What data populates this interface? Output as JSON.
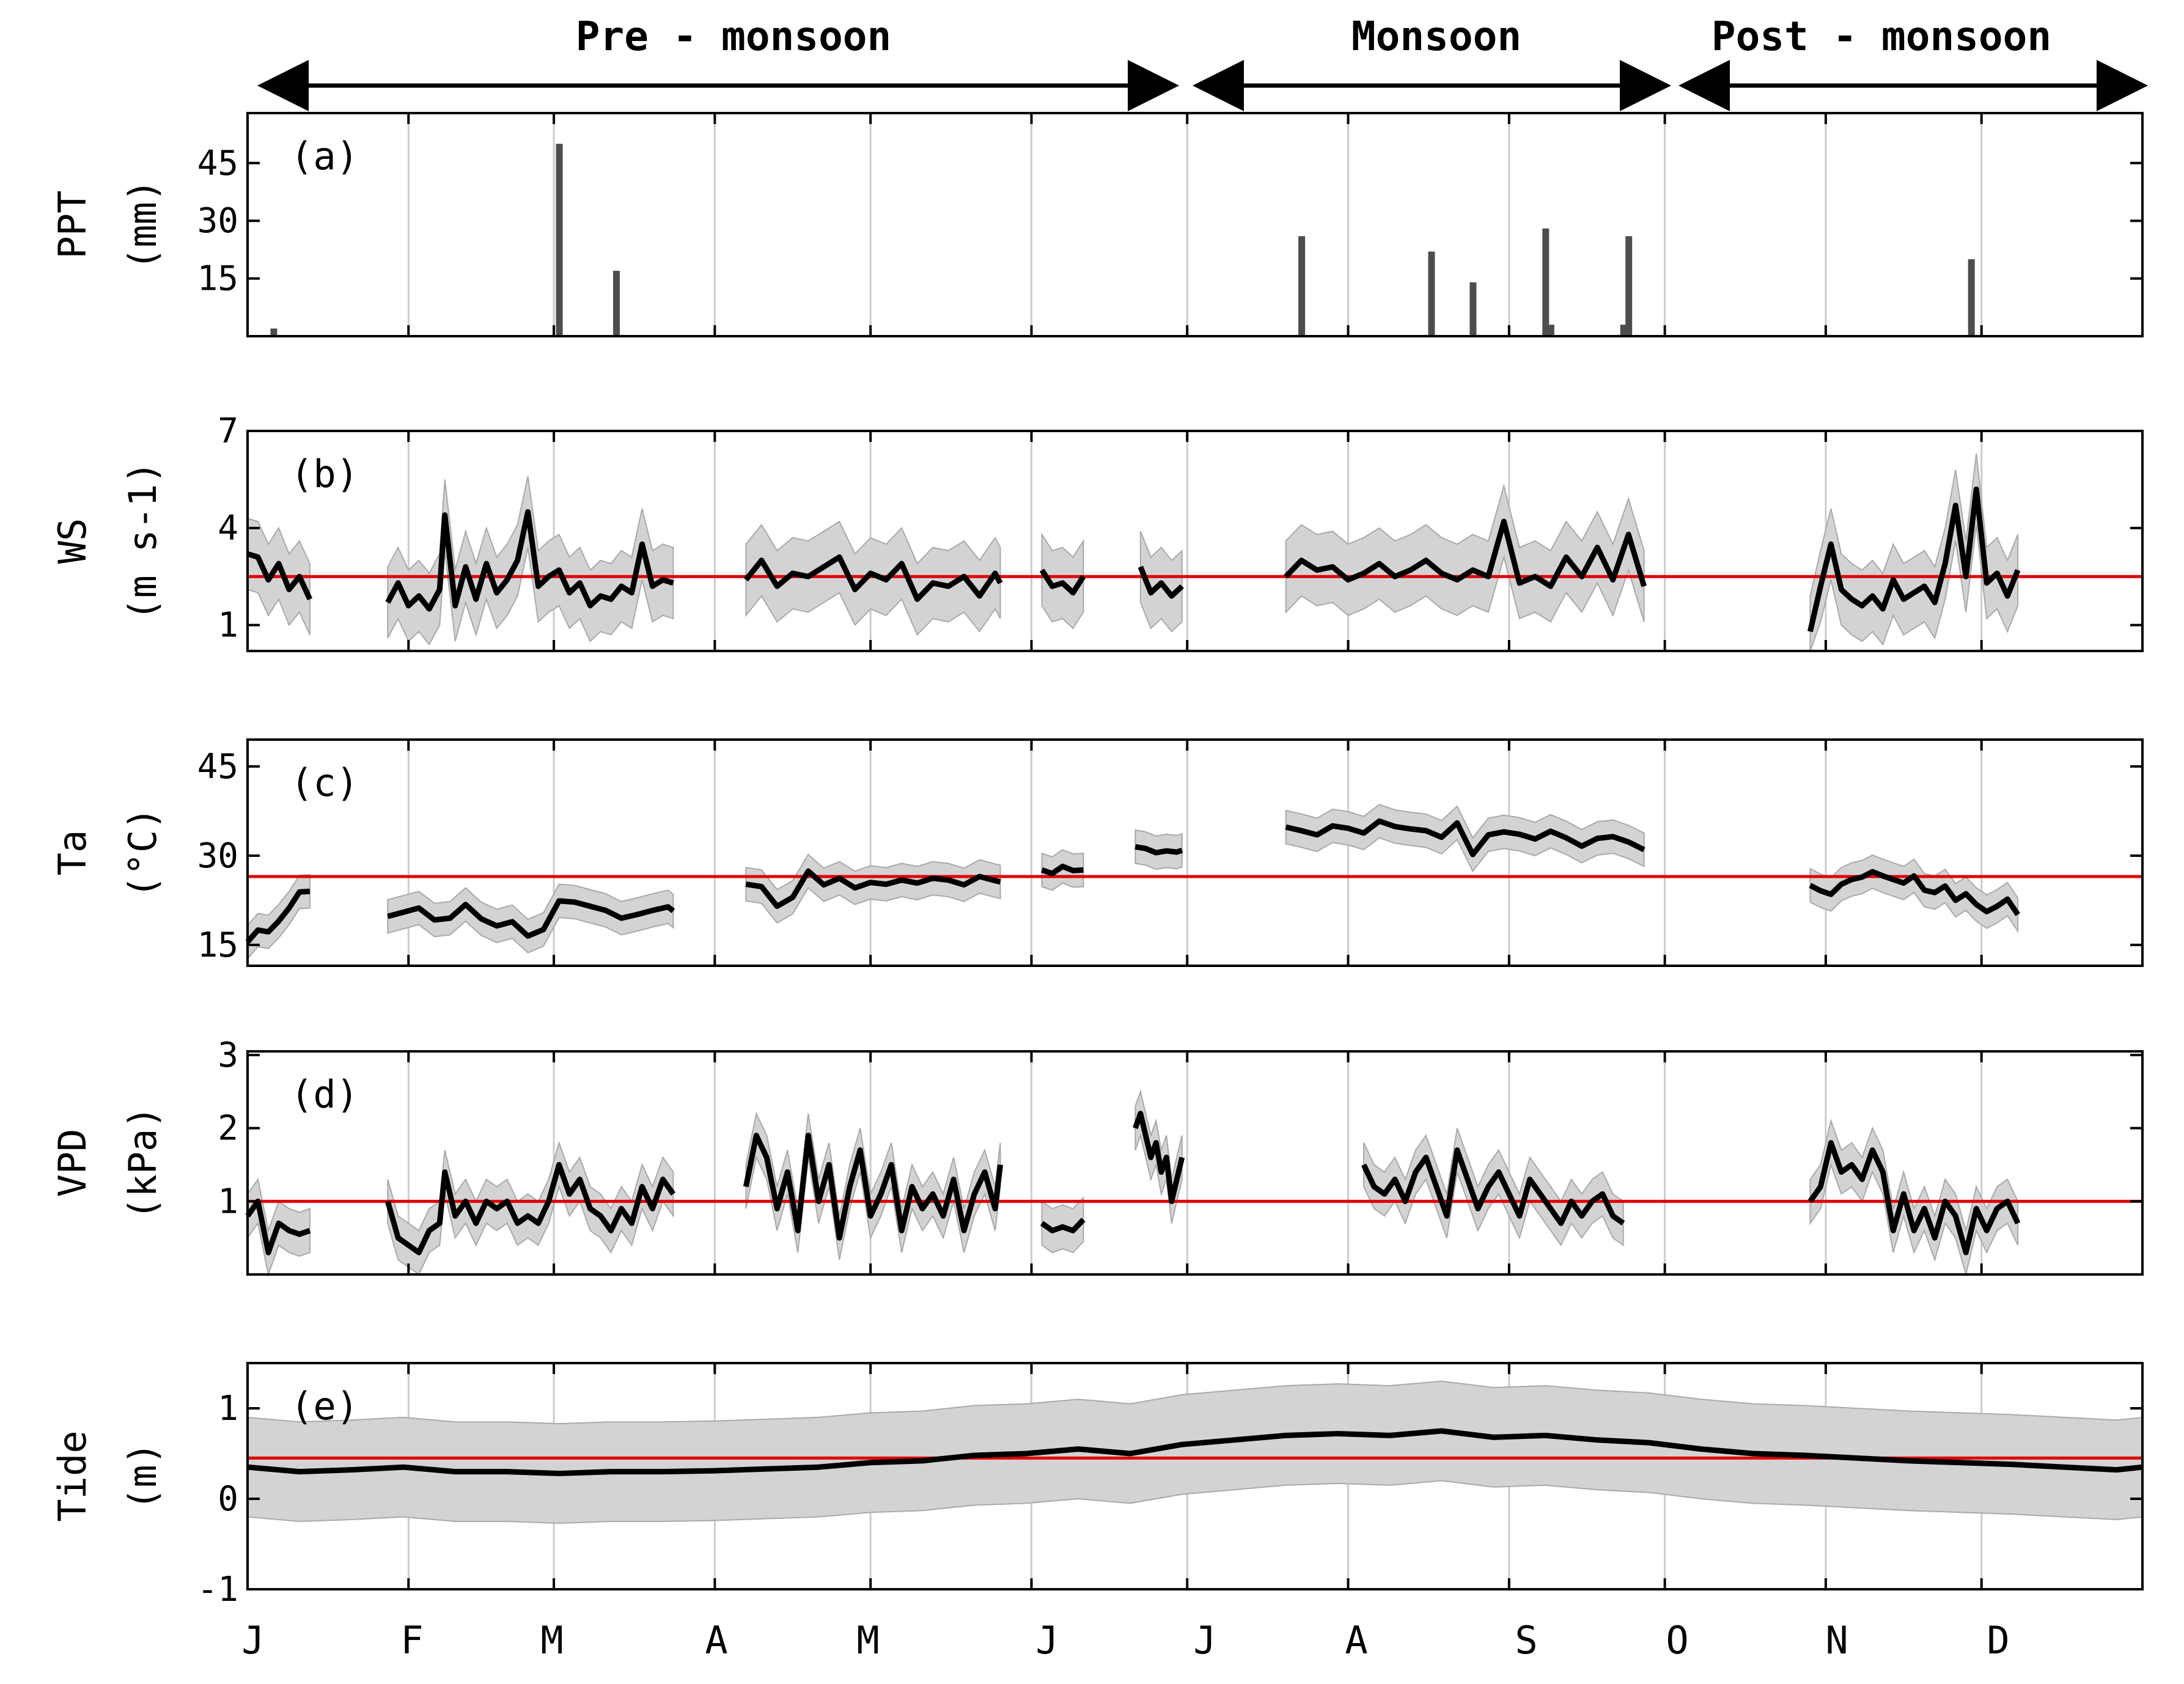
{
  "colors": {
    "series_line": "#000000",
    "band_fill": "#d3d3d3",
    "band_stroke": "#a9a9a9",
    "mean_line": "#e00000",
    "grid": "#cccccc",
    "bar": "#4d4d4d"
  },
  "seasons": [
    {
      "label": "Pre - monsoon",
      "start_day": 0,
      "end_day": 182
    },
    {
      "label": "Monsoon",
      "start_day": 182,
      "end_day": 273
    },
    {
      "label": "Post - monsoon",
      "start_day": 273,
      "end_day": 365
    }
  ],
  "months": [
    "J",
    "F",
    "M",
    "A",
    "M",
    "J",
    "J",
    "A",
    "S",
    "O",
    "N",
    "D"
  ],
  "month_start_days": [
    0,
    31,
    59,
    90,
    120,
    151,
    181,
    212,
    243,
    273,
    304,
    334
  ],
  "chart_data": [
    {
      "type": "bar",
      "panel": "(a)",
      "ylabel_lines": [
        "PPT",
        "(mm)"
      ],
      "yticks": [
        15,
        30,
        45
      ],
      "ylim": [
        0,
        58
      ],
      "x_unit": "day of year",
      "bars": [
        {
          "day": 5,
          "value": 2
        },
        {
          "day": 60,
          "value": 50
        },
        {
          "day": 71,
          "value": 17
        },
        {
          "day": 203,
          "value": 26
        },
        {
          "day": 228,
          "value": 22
        },
        {
          "day": 236,
          "value": 14
        },
        {
          "day": 250,
          "value": 28
        },
        {
          "day": 251,
          "value": 3
        },
        {
          "day": 265,
          "value": 3
        },
        {
          "day": 266,
          "value": 26
        },
        {
          "day": 332,
          "value": 20
        }
      ]
    },
    {
      "type": "line",
      "panel": "(b)",
      "ylabel_lines": [
        "WS",
        "(m s-1)"
      ],
      "yticks": [
        1,
        4,
        7
      ],
      "ylim": [
        0.2,
        7
      ],
      "mean": 2.5,
      "band_width": 1.1,
      "segments": [
        {
          "days": [
            0,
            2,
            4,
            6,
            8,
            10,
            12
          ],
          "values": [
            3.2,
            3.1,
            2.4,
            2.9,
            2.1,
            2.5,
            1.8
          ]
        },
        {
          "days": [
            27,
            29,
            31,
            33,
            35,
            37,
            38,
            40,
            42,
            44,
            46,
            48,
            50,
            52,
            54,
            56,
            58,
            60,
            62,
            64,
            66,
            68,
            70,
            72,
            74,
            76,
            78,
            80,
            82
          ],
          "values": [
            1.7,
            2.3,
            1.6,
            1.9,
            1.5,
            2.1,
            4.4,
            1.6,
            2.8,
            1.8,
            2.9,
            2.0,
            2.4,
            3.0,
            4.5,
            2.2,
            2.5,
            2.7,
            2.0,
            2.3,
            1.6,
            1.9,
            1.8,
            2.2,
            2.0,
            3.5,
            2.2,
            2.4,
            2.3
          ]
        },
        {
          "days": [
            96,
            99,
            102,
            105,
            108,
            111,
            114,
            117,
            120,
            123,
            126,
            129,
            132,
            135,
            138,
            141,
            144,
            145
          ],
          "values": [
            2.4,
            3.0,
            2.2,
            2.6,
            2.5,
            2.8,
            3.1,
            2.1,
            2.6,
            2.4,
            2.9,
            1.8,
            2.3,
            2.2,
            2.5,
            1.9,
            2.6,
            2.3
          ]
        },
        {
          "days": [
            153,
            155,
            157,
            159,
            161
          ],
          "values": [
            2.7,
            2.2,
            2.3,
            2.0,
            2.5
          ]
        },
        {
          "days": [
            172,
            174,
            176,
            178,
            180
          ],
          "values": [
            2.8,
            2.0,
            2.3,
            1.9,
            2.2
          ]
        },
        {
          "days": [
            200,
            203,
            206,
            209,
            212,
            215,
            218,
            221,
            224,
            227,
            230,
            233,
            236,
            239,
            242,
            245,
            248,
            251,
            254,
            257,
            260,
            263,
            266,
            269
          ],
          "values": [
            2.5,
            3.0,
            2.7,
            2.8,
            2.4,
            2.6,
            2.9,
            2.5,
            2.7,
            3.0,
            2.6,
            2.4,
            2.7,
            2.5,
            4.2,
            2.3,
            2.5,
            2.2,
            3.1,
            2.5,
            3.4,
            2.4,
            3.8,
            2.2
          ]
        },
        {
          "days": [
            301,
            303,
            305,
            307,
            309,
            311,
            313,
            315,
            317,
            319,
            321,
            323,
            325,
            327,
            329,
            331,
            333,
            335,
            337,
            339,
            341
          ],
          "values": [
            0.8,
            2.2,
            3.5,
            2.1,
            1.8,
            1.6,
            1.9,
            1.5,
            2.4,
            1.8,
            2.0,
            2.2,
            1.7,
            2.9,
            4.7,
            2.5,
            5.2,
            2.3,
            2.6,
            1.9,
            2.7
          ]
        }
      ]
    },
    {
      "type": "line",
      "panel": "(c)",
      "ylabel_lines": [
        "Ta",
        "(°C)"
      ],
      "yticks": [
        15,
        30,
        45
      ],
      "ylim": [
        11.5,
        49.5
      ],
      "mean": 26.5,
      "band_width": 2.8,
      "segments": [
        {
          "days": [
            0,
            2,
            4,
            6,
            8,
            10,
            12
          ],
          "values": [
            15.5,
            17.5,
            17.2,
            19.0,
            21.2,
            23.9,
            24.0
          ]
        },
        {
          "days": [
            27,
            30,
            33,
            36,
            39,
            42,
            45,
            48,
            51,
            54,
            57,
            60,
            63,
            66,
            69,
            72,
            75,
            78,
            81,
            82
          ],
          "values": [
            19.8,
            20.5,
            21.2,
            19.2,
            19.5,
            21.8,
            19.4,
            18.2,
            18.9,
            16.5,
            17.6,
            22.4,
            22.2,
            21.5,
            20.8,
            19.5,
            20.1,
            20.8,
            21.4,
            20.7
          ]
        },
        {
          "days": [
            96,
            99,
            102,
            105,
            108,
            111,
            114,
            117,
            120,
            123,
            126,
            129,
            132,
            135,
            138,
            141,
            144,
            145
          ],
          "values": [
            25.2,
            24.8,
            21.5,
            23.0,
            27.4,
            25.1,
            26.2,
            24.6,
            25.5,
            25.2,
            25.9,
            25.4,
            26.2,
            25.9,
            25.1,
            26.5,
            25.8,
            25.6
          ]
        },
        {
          "days": [
            153,
            155,
            157,
            159,
            161
          ],
          "values": [
            27.6,
            27.0,
            28.2,
            27.5,
            27.6
          ]
        },
        {
          "days": [
            171,
            173,
            175,
            177,
            179,
            180
          ],
          "values": [
            31.5,
            31.2,
            30.5,
            30.8,
            30.6,
            30.9
          ]
        },
        {
          "days": [
            200,
            203,
            206,
            209,
            212,
            215,
            218,
            221,
            224,
            227,
            230,
            233,
            236,
            239,
            242,
            245,
            248,
            251,
            254,
            257,
            260,
            263,
            266,
            269
          ],
          "values": [
            34.8,
            34.2,
            33.5,
            35.0,
            34.6,
            33.8,
            35.8,
            34.9,
            34.5,
            34.2,
            33.1,
            35.5,
            30.2,
            33.5,
            34.0,
            33.6,
            32.8,
            34.1,
            33.0,
            31.6,
            32.9,
            33.2,
            32.3,
            31.0
          ]
        },
        {
          "days": [
            301,
            303,
            305,
            307,
            309,
            311,
            313,
            315,
            317,
            319,
            321,
            323,
            325,
            327,
            329,
            331,
            333,
            335,
            337,
            339,
            341
          ],
          "values": [
            25.0,
            24.1,
            23.5,
            25.2,
            26.0,
            26.4,
            27.3,
            26.6,
            26.0,
            25.4,
            26.6,
            24.2,
            23.8,
            24.9,
            22.5,
            23.6,
            21.8,
            20.6,
            21.5,
            22.7,
            20.1
          ]
        }
      ]
    },
    {
      "type": "line",
      "panel": "(d)",
      "ylabel_lines": [
        "VPD",
        "(kPa)"
      ],
      "yticks": [
        1,
        2,
        3
      ],
      "ylim": [
        0,
        3.05
      ],
      "mean": 1.0,
      "band_width": 0.3,
      "segments": [
        {
          "days": [
            0,
            2,
            4,
            6,
            8,
            10,
            12
          ],
          "values": [
            0.8,
            1.0,
            0.3,
            0.7,
            0.6,
            0.55,
            0.6
          ]
        },
        {
          "days": [
            27,
            29,
            31,
            33,
            35,
            37,
            38,
            40,
            42,
            44,
            46,
            48,
            50,
            52,
            54,
            56,
            58,
            60,
            62,
            64,
            66,
            68,
            70,
            72,
            74,
            76,
            78,
            80,
            82
          ],
          "values": [
            1.0,
            0.5,
            0.4,
            0.3,
            0.6,
            0.7,
            1.4,
            0.8,
            1.0,
            0.7,
            1.0,
            0.9,
            1.0,
            0.7,
            0.8,
            0.7,
            1.0,
            1.5,
            1.1,
            1.3,
            0.9,
            0.8,
            0.6,
            0.9,
            0.7,
            1.2,
            0.9,
            1.3,
            1.1
          ]
        },
        {
          "days": [
            96,
            98,
            100,
            102,
            104,
            106,
            108,
            110,
            112,
            114,
            116,
            118,
            120,
            122,
            124,
            126,
            128,
            130,
            132,
            134,
            136,
            138,
            140,
            142,
            144,
            145
          ],
          "values": [
            1.2,
            1.9,
            1.6,
            0.9,
            1.4,
            0.6,
            1.9,
            1.0,
            1.5,
            0.5,
            1.2,
            1.7,
            0.8,
            1.1,
            1.5,
            0.6,
            1.2,
            0.9,
            1.1,
            0.8,
            1.3,
            0.6,
            1.1,
            1.4,
            0.9,
            1.5
          ]
        },
        {
          "days": [
            153,
            155,
            157,
            159,
            161
          ],
          "values": [
            0.7,
            0.6,
            0.65,
            0.6,
            0.75
          ]
        },
        {
          "days": [
            171,
            172,
            173,
            174,
            175,
            176,
            177,
            178,
            179,
            180
          ],
          "values": [
            2.0,
            2.2,
            1.9,
            1.6,
            1.8,
            1.4,
            1.6,
            1.0,
            1.3,
            1.6
          ]
        },
        {
          "days": [
            215,
            217,
            219,
            221,
            223,
            225,
            227,
            229,
            231,
            233,
            235,
            237,
            239,
            241,
            243,
            245,
            247,
            249,
            251,
            253,
            255,
            257,
            259,
            261,
            263,
            265
          ],
          "values": [
            1.5,
            1.2,
            1.1,
            1.3,
            1.0,
            1.4,
            1.6,
            1.2,
            0.8,
            1.7,
            1.3,
            0.9,
            1.2,
            1.4,
            1.1,
            0.8,
            1.3,
            1.1,
            0.9,
            0.7,
            1.0,
            0.8,
            1.0,
            1.1,
            0.8,
            0.7
          ]
        },
        {
          "days": [
            301,
            303,
            305,
            307,
            309,
            311,
            313,
            315,
            317,
            319,
            321,
            323,
            325,
            327,
            329,
            331,
            333,
            335,
            337,
            339,
            341
          ],
          "values": [
            1.0,
            1.2,
            1.8,
            1.4,
            1.5,
            1.3,
            1.7,
            1.4,
            0.6,
            1.1,
            0.6,
            0.9,
            0.5,
            1.0,
            0.8,
            0.3,
            0.9,
            0.6,
            0.9,
            1.0,
            0.7
          ]
        }
      ]
    },
    {
      "type": "line",
      "panel": "(e)",
      "ylabel_lines": [
        "Tide",
        "(m)"
      ],
      "yticks": [
        -1,
        0,
        1
      ],
      "ylim": [
        -1,
        1.5
      ],
      "mean": 0.45,
      "band_width": 0.55,
      "segments": [
        {
          "days": [
            0,
            10,
            20,
            30,
            40,
            50,
            60,
            70,
            80,
            90,
            100,
            110,
            120,
            130,
            140,
            150,
            160,
            170,
            180,
            190,
            200,
            210,
            220,
            230,
            240,
            250,
            260,
            270,
            280,
            290,
            300,
            310,
            320,
            330,
            340,
            350,
            360,
            365
          ],
          "values": [
            0.35,
            0.3,
            0.32,
            0.35,
            0.3,
            0.3,
            0.28,
            0.3,
            0.3,
            0.31,
            0.33,
            0.35,
            0.4,
            0.42,
            0.48,
            0.5,
            0.55,
            0.5,
            0.6,
            0.65,
            0.7,
            0.72,
            0.7,
            0.75,
            0.68,
            0.7,
            0.65,
            0.62,
            0.55,
            0.5,
            0.48,
            0.45,
            0.42,
            0.4,
            0.38,
            0.35,
            0.32,
            0.35
          ]
        }
      ]
    }
  ]
}
